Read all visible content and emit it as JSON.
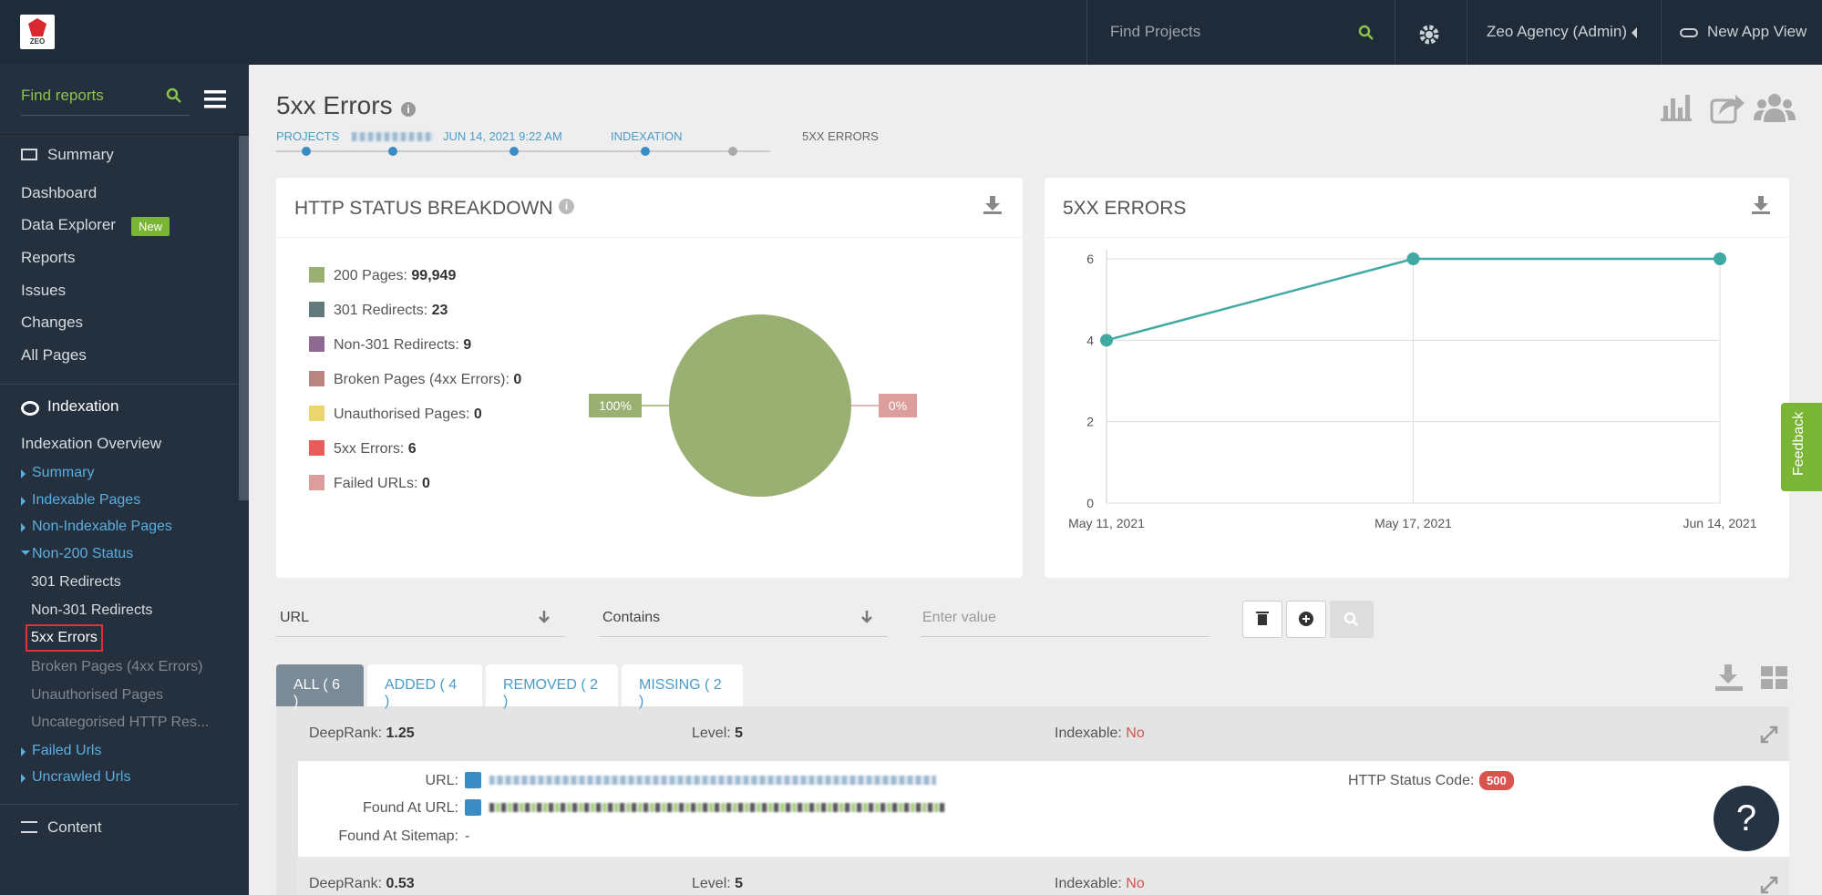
{
  "topbar": {
    "search_placeholder": "Find Projects",
    "account": "Zeo Agency (Admin)",
    "new_view": "New App View",
    "logo": "ZEO"
  },
  "sidebar": {
    "search_placeholder": "Find reports",
    "sections": [
      {
        "label": "Summary",
        "items": [
          "Dashboard",
          "Data Explorer",
          "Reports",
          "Issues",
          "Changes",
          "All Pages"
        ],
        "badge": "New"
      },
      {
        "label": "Indexation",
        "items": [
          "Indexation Overview",
          "Summary",
          "Indexable Pages",
          "Non-Indexable Pages",
          "Non-200 Status",
          "301 Redirects",
          "Non-301 Redirects",
          "5xx Errors",
          "Broken Pages (4xx Errors)",
          "Unauthorised Pages",
          "Uncategorised HTTP Res...",
          "Failed Urls",
          "Uncrawled Urls"
        ]
      },
      {
        "label": "Content"
      }
    ]
  },
  "header": {
    "title": "5xx Errors",
    "breadcrumb": [
      "PROJECTS",
      "JUN 14, 2021 9:22 AM",
      "INDEXATION",
      "5XX ERRORS"
    ]
  },
  "status_panel": {
    "title": "HTTP STATUS BREAKDOWN",
    "legend": [
      {
        "label": "200 Pages:",
        "count": "99,949",
        "color": "#9aaf72"
      },
      {
        "label": "301 Redirects:",
        "count": "23",
        "color": "#637a7c"
      },
      {
        "label": "Non-301 Redirects:",
        "count": "9",
        "color": "#8e6a92"
      },
      {
        "label": "Broken Pages (4xx Errors):",
        "count": "0",
        "color": "#b98580"
      },
      {
        "label": "Unauthorised Pages:",
        "count": "0",
        "color": "#ebd66e"
      },
      {
        "label": "5xx Errors:",
        "count": "6",
        "color": "#e85c5c"
      },
      {
        "label": "Failed URLs:",
        "count": "0",
        "color": "#dc9d9d"
      }
    ],
    "chart_data": {
      "type": "pie",
      "values": [
        100,
        0
      ],
      "value_labels": [
        "100%",
        "0%"
      ],
      "colors": [
        "#9aaf72",
        "#dc9d9d"
      ]
    }
  },
  "errors_panel": {
    "title": "5XX ERRORS",
    "chart_data": {
      "type": "line",
      "categories": [
        "May 11, 2021",
        "May 17, 2021",
        "Jun 14, 2021"
      ],
      "series": [
        {
          "values": [
            4,
            6,
            6
          ],
          "color": "#3fa9a2"
        }
      ],
      "ylim": [
        0,
        6
      ],
      "yticks": [
        0,
        2,
        4,
        6
      ],
      "grid": true
    }
  },
  "filter": {
    "field": "URL",
    "operator": "Contains",
    "placeholder": "Enter value"
  },
  "tabs": [
    "ALL ( 6 )",
    "ADDED ( 4 )",
    "REMOVED ( 2 )",
    "MISSING ( 2 )"
  ],
  "rows": [
    {
      "deeprank_label": "DeepRank:",
      "deeprank": "1.25",
      "level_label": "Level:",
      "level": "5",
      "indexable_label": "Indexable:",
      "indexable": "No",
      "url_label": "URL:",
      "found_label": "Found At URL:",
      "sitemap_label": "Found At Sitemap:",
      "sitemap": "-",
      "status_label": "HTTP Status Code:",
      "status": "500"
    },
    {
      "deeprank_label": "DeepRank:",
      "deeprank": "0.53",
      "level_label": "Level:",
      "level": "5",
      "indexable_label": "Indexable:",
      "indexable": "No"
    }
  ],
  "feedback": "Feedback",
  "help": "?"
}
